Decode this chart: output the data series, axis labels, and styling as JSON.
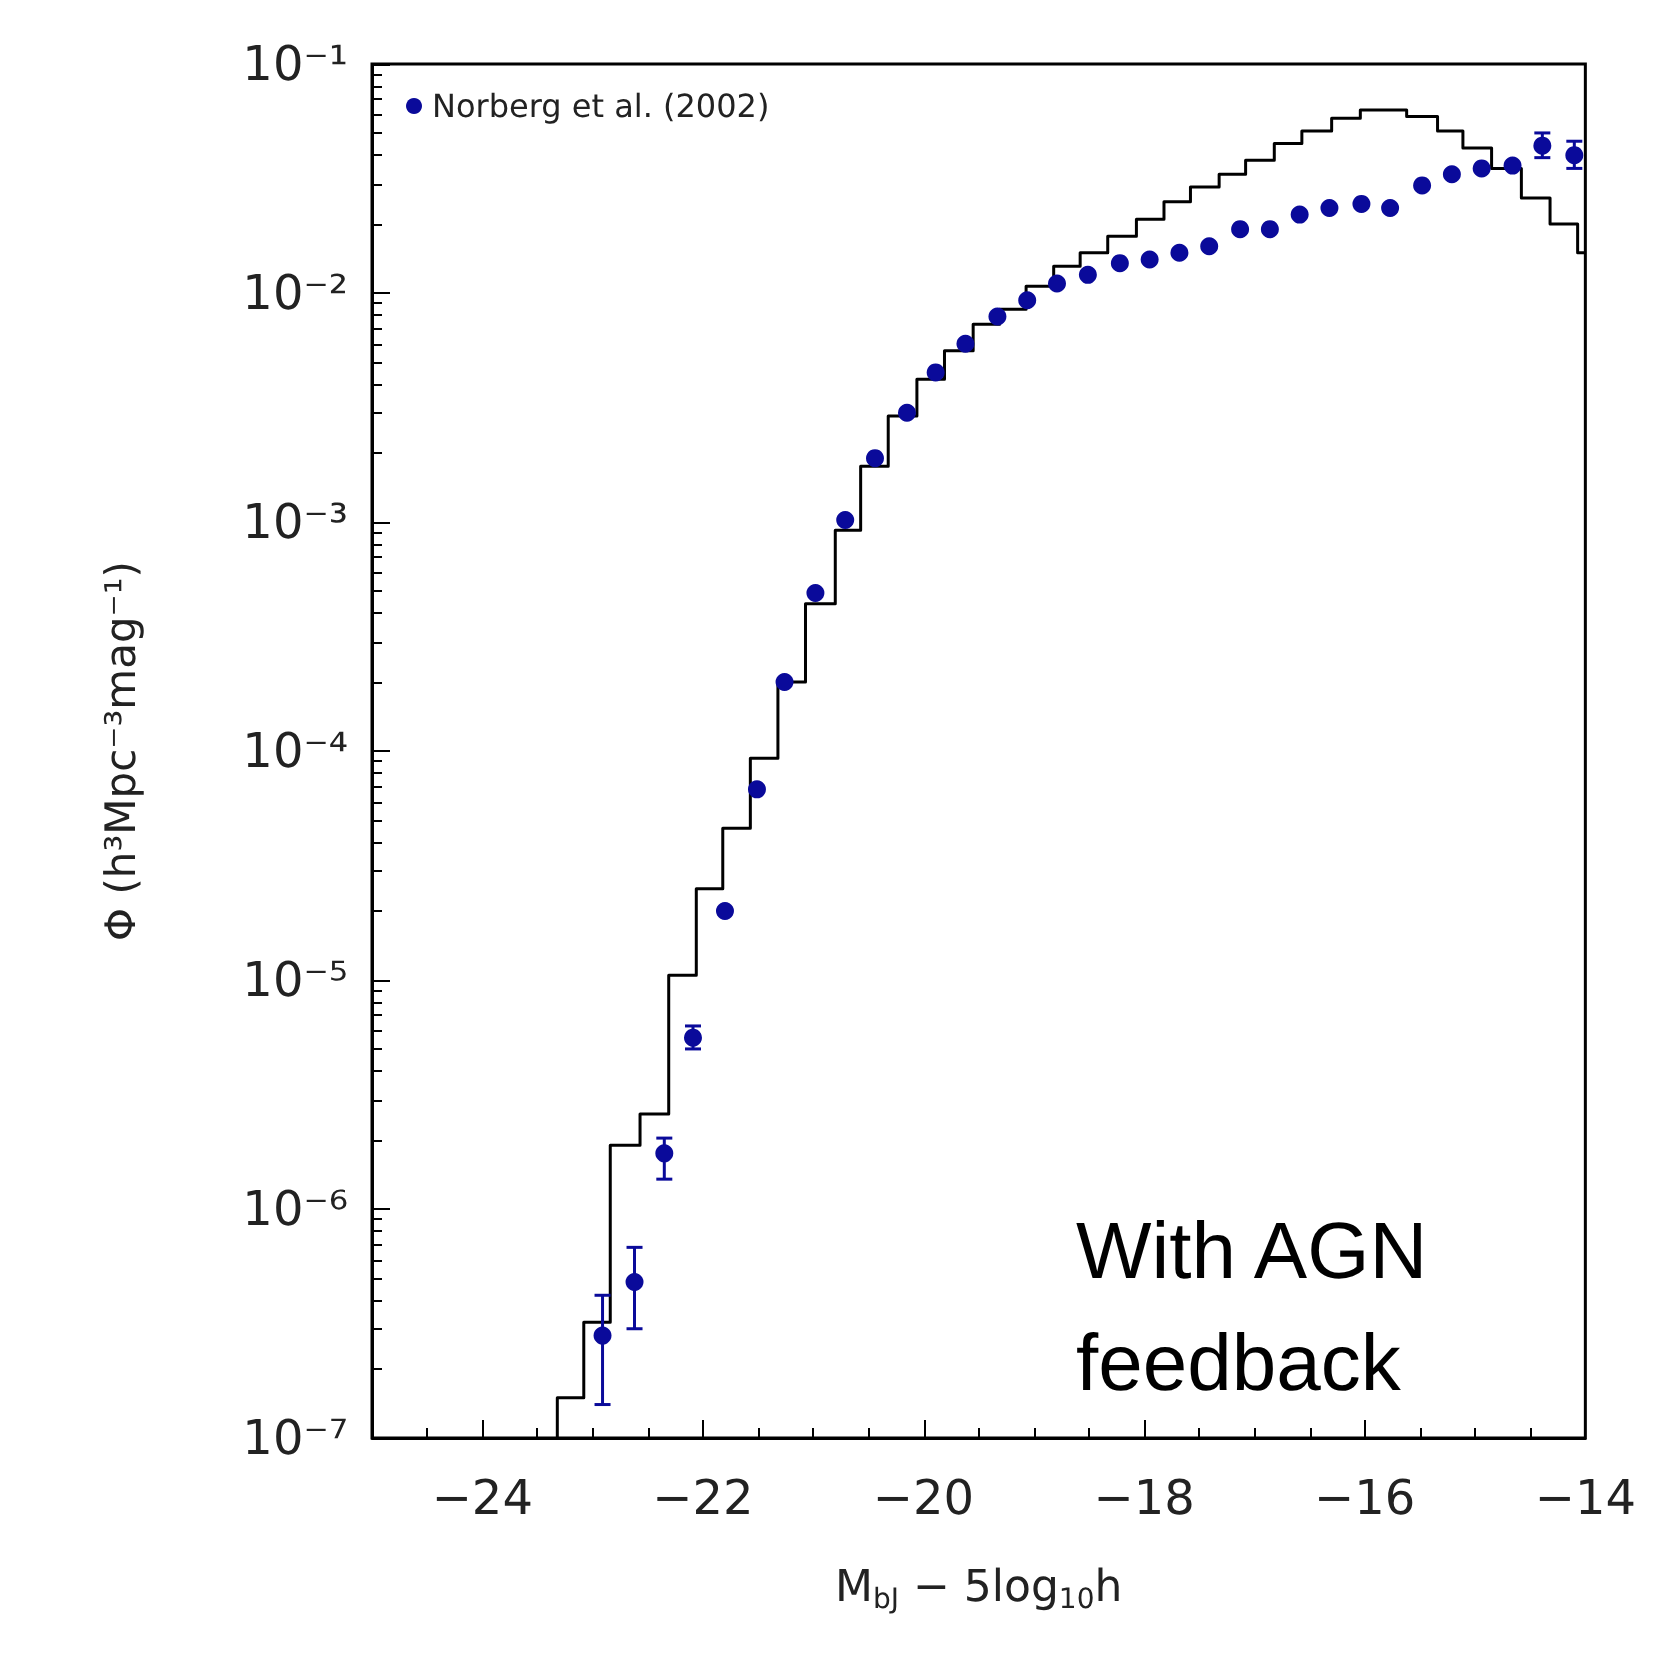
{
  "chart_data": {
    "type": "histogram",
    "xlabel": "M$_{bJ}$ − 5log$_{10}$h",
    "ylabel": "Φ (h³Mpc⁻³mag⁻¹)",
    "annotations": [
      "With AGN feedback"
    ],
    "xlim": [
      -25,
      -14
    ],
    "xticks": [
      -24,
      -22,
      -20,
      -18,
      -16,
      -14
    ],
    "ylim": [
      1e-07,
      0.1
    ],
    "yticks": [
      {
        "value": 1e-07,
        "label": "10⁻⁷"
      },
      {
        "value": 1e-06,
        "label": "10⁻⁶"
      },
      {
        "value": 1e-05,
        "label": "10⁻⁵"
      },
      {
        "value": 0.0001,
        "label": "10⁻⁴"
      },
      {
        "value": 0.001,
        "label": "10⁻³"
      },
      {
        "value": 0.01,
        "label": "10⁻²"
      },
      {
        "value": 0.1,
        "label": "10⁻¹"
      }
    ],
    "log": "y",
    "grid": false,
    "legend": "top left",
    "series": [
      {
        "color": "#000000",
        "bins": [
          -23.32,
          -23.08,
          -22.84,
          -22.57,
          -22.31,
          -22.06,
          -21.82,
          -21.57,
          -21.32,
          -21.07,
          -20.8,
          -20.57,
          -20.32,
          -20.06,
          -19.81,
          -19.55,
          -19.31,
          -19.07,
          -18.82,
          -18.58,
          -18.33,
          -18.07,
          -17.82,
          -17.58,
          -17.32,
          -17.08,
          -16.82,
          -16.57,
          -16.3,
          -16.04,
          -15.62,
          -15.34,
          -15.11,
          -14.85,
          -14.58,
          -14.32,
          -14.07,
          -14.0
        ],
        "values": [
          1.5e-07,
          3.2e-07,
          1.9e-06,
          2.6e-06,
          1.05e-05,
          2.5e-05,
          4.6e-05,
          9.3e-05,
          0.0002,
          0.00044,
          0.00092,
          0.00175,
          0.0029,
          0.0042,
          0.0056,
          0.0073,
          0.0085,
          0.0107,
          0.0131,
          0.015,
          0.0177,
          0.021,
          0.025,
          0.029,
          0.033,
          0.038,
          0.045,
          0.051,
          0.058,
          0.063,
          0.059,
          0.051,
          0.043,
          0.035,
          0.026,
          0.02,
          0.015
        ]
      },
      {
        "type": "scatter",
        "name": "Norberg et al. (2002)",
        "color": "#0a0a9a",
        "marker": "circle",
        "x": [
          -22.91,
          -22.62,
          -22.35,
          -22.09,
          -21.8,
          -21.51,
          -21.26,
          -20.98,
          -20.71,
          -20.44,
          -20.15,
          -19.89,
          -19.62,
          -19.33,
          -19.06,
          -18.79,
          -18.51,
          -18.22,
          -17.95,
          -17.68,
          -17.41,
          -17.13,
          -16.86,
          -16.59,
          -16.32,
          -16.03,
          -15.77,
          -15.48,
          -15.21,
          -14.94,
          -14.66,
          -14.39,
          -14.1
        ],
        "values": [
          2.8e-07,
          4.8e-07,
          1.75e-06,
          5.6e-06,
          2e-05,
          6.8e-05,
          0.0002,
          0.00049,
          0.00102,
          0.0019,
          0.003,
          0.0045,
          0.006,
          0.0079,
          0.0093,
          0.011,
          0.012,
          0.0135,
          0.014,
          0.015,
          0.016,
          0.019,
          0.019,
          0.022,
          0.0235,
          0.0245,
          0.0235,
          0.0295,
          0.033,
          0.035,
          0.036,
          0.044,
          0.04
        ],
        "errors": [
          [
            1.4e-07,
            4.2e-07
          ],
          [
            3e-07,
            6.8e-07
          ],
          [
            1.35e-06,
            2.04e-06
          ],
          [
            5e-06,
            6.3e-06
          ],
          null,
          null,
          null,
          null,
          null,
          null,
          null,
          null,
          null,
          null,
          null,
          null,
          null,
          null,
          null,
          null,
          null,
          null,
          null,
          null,
          null,
          null,
          null,
          null,
          null,
          null,
          null,
          [
            0.039,
            0.05
          ],
          [
            0.035,
            0.046
          ]
        ]
      }
    ]
  }
}
